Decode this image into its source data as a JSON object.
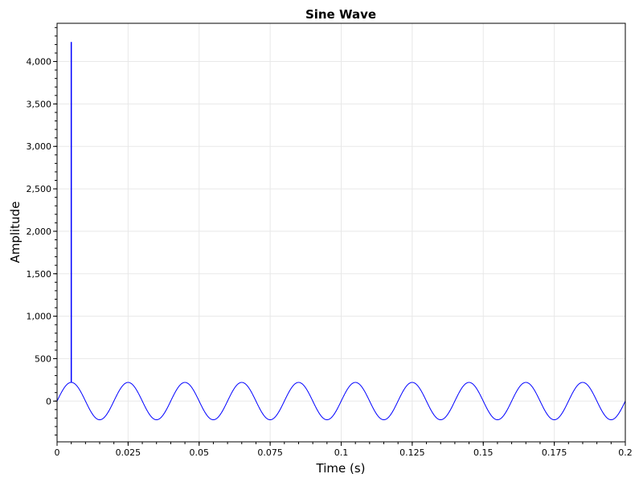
{
  "chart_data": {
    "type": "line",
    "title": "Sine Wave",
    "xlabel": "Time (s)",
    "ylabel": "Amplitude",
    "xlim": [
      0,
      0.2
    ],
    "ylim": [
      -480,
      4450
    ],
    "grid": true,
    "x_ticks": [
      {
        "value": 0,
        "label": "0"
      },
      {
        "value": 0.025,
        "label": "0.025"
      },
      {
        "value": 0.05,
        "label": "0.05"
      },
      {
        "value": 0.075,
        "label": "0.075"
      },
      {
        "value": 0.1,
        "label": "0.1"
      },
      {
        "value": 0.125,
        "label": "0.125"
      },
      {
        "value": 0.15,
        "label": "0.15"
      },
      {
        "value": 0.175,
        "label": "0.175"
      },
      {
        "value": 0.2,
        "label": "0.2"
      }
    ],
    "y_ticks": [
      {
        "value": 0,
        "label": "0"
      },
      {
        "value": 500,
        "label": "500"
      },
      {
        "value": 1000,
        "label": "1,000"
      },
      {
        "value": 1500,
        "label": "1,500"
      },
      {
        "value": 2000,
        "label": "2,000"
      },
      {
        "value": 2500,
        "label": "2,500"
      },
      {
        "value": 3000,
        "label": "3,000"
      },
      {
        "value": 3500,
        "label": "3,500"
      },
      {
        "value": 4000,
        "label": "4,000"
      }
    ],
    "series": [
      {
        "color": "#0000ff",
        "function": "sine",
        "amplitude": 220,
        "frequency_hz": 50,
        "x_start": 0,
        "x_end": 0.2,
        "spike": {
          "x": 0.005,
          "y": 4230
        }
      }
    ]
  }
}
